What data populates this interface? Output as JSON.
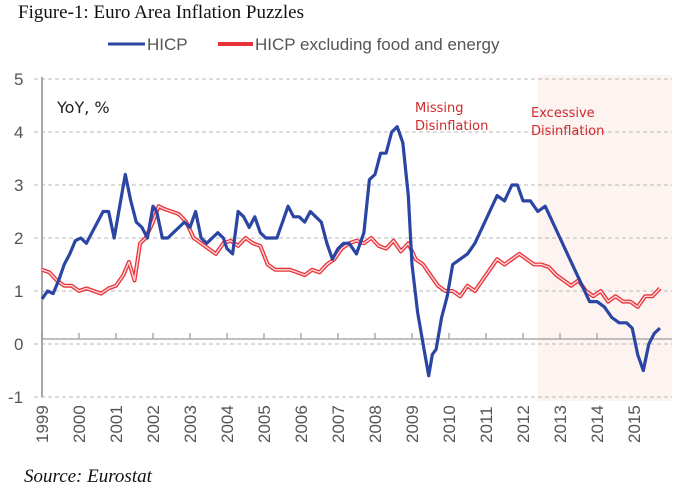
{
  "figure": {
    "title": "Figure-1: Euro Area Inflation Puzzles",
    "source": "Source: Eurostat"
  },
  "chart_data": {
    "type": "line",
    "title": "Figure-1: Euro Area Inflation Puzzles",
    "xlabel": "",
    "ylabel": "YoY, %",
    "unit_label": "YoY, %",
    "xlim": [
      1999,
      2016
    ],
    "ylim": [
      -1,
      5
    ],
    "x_ticks": [
      1999,
      2000,
      2001,
      2002,
      2003,
      2004,
      2005,
      2006,
      2007,
      2008,
      2009,
      2010,
      2011,
      2012,
      2013,
      2014,
      2015
    ],
    "y_ticks": [
      -1,
      0,
      1,
      2,
      3,
      4,
      5
    ],
    "grid": "horizontal-dashed",
    "legend_position": "top-center",
    "legend": [
      "HICP",
      "HICP excluding food and energy"
    ],
    "shaded_region": {
      "from": 2012.4,
      "to": 2015.9,
      "color": "#fdf3f1"
    },
    "annotations": [
      {
        "text": "Missing",
        "x": 2009.0,
        "y": 4.5
      },
      {
        "text": "Disinflation",
        "x": 2009.0,
        "y": 4.1
      },
      {
        "text": "Excessive",
        "x": 2012.4,
        "y": 4.4
      },
      {
        "text": "Disinflation",
        "x": 2012.4,
        "y": 4.05
      }
    ],
    "series": [
      {
        "name": "HICP",
        "color": "#2a45a3",
        "x": [
          1999.0,
          1999.15,
          1999.3,
          1999.45,
          1999.6,
          1999.75,
          1999.9,
          2000.05,
          2000.2,
          2000.35,
          2000.5,
          2000.65,
          2000.8,
          2000.95,
          2001.1,
          2001.25,
          2001.4,
          2001.55,
          2001.7,
          2001.85,
          2002.0,
          2002.1,
          2002.25,
          2002.4,
          2002.55,
          2002.7,
          2002.85,
          2003.0,
          2003.15,
          2003.3,
          2003.45,
          2003.6,
          2003.75,
          2003.9,
          2004.0,
          2004.15,
          2004.3,
          2004.45,
          2004.6,
          2004.75,
          2004.9,
          2005.05,
          2005.2,
          2005.35,
          2005.5,
          2005.65,
          2005.8,
          2005.95,
          2006.1,
          2006.25,
          2006.4,
          2006.55,
          2006.7,
          2006.85,
          2007.0,
          2007.15,
          2007.3,
          2007.5,
          2007.7,
          2007.85,
          2008.0,
          2008.15,
          2008.3,
          2008.45,
          2008.6,
          2008.75,
          2008.9,
          2009.0,
          2009.15,
          2009.3,
          2009.45,
          2009.55,
          2009.65,
          2009.8,
          2009.95,
          2010.1,
          2010.3,
          2010.5,
          2010.7,
          2010.9,
          2011.1,
          2011.3,
          2011.5,
          2011.7,
          2011.85,
          2012.0,
          2012.2,
          2012.4,
          2012.6,
          2012.8,
          2013.0,
          2013.2,
          2013.4,
          2013.6,
          2013.8,
          2014.0,
          2014.2,
          2014.4,
          2014.6,
          2014.8,
          2014.95,
          2015.1,
          2015.25,
          2015.4,
          2015.55,
          2015.7
        ],
        "values": [
          0.85,
          1.0,
          0.95,
          1.2,
          1.5,
          1.7,
          1.95,
          2.0,
          1.9,
          2.1,
          2.3,
          2.5,
          2.5,
          2.0,
          2.6,
          3.2,
          2.7,
          2.3,
          2.2,
          2.0,
          2.6,
          2.5,
          2.0,
          2.0,
          2.1,
          2.2,
          2.3,
          2.2,
          2.5,
          2.0,
          1.9,
          2.0,
          2.1,
          2.0,
          1.8,
          1.7,
          2.5,
          2.4,
          2.2,
          2.4,
          2.1,
          2.0,
          2.0,
          2.0,
          2.3,
          2.6,
          2.4,
          2.4,
          2.3,
          2.5,
          2.4,
          2.3,
          1.9,
          1.6,
          1.8,
          1.9,
          1.9,
          1.7,
          2.1,
          3.1,
          3.2,
          3.6,
          3.6,
          4.0,
          4.1,
          3.8,
          2.8,
          1.5,
          0.6,
          0.0,
          -0.6,
          -0.2,
          -0.1,
          0.5,
          0.9,
          1.5,
          1.6,
          1.7,
          1.9,
          2.2,
          2.5,
          2.8,
          2.7,
          3.0,
          3.0,
          2.7,
          2.7,
          2.5,
          2.6,
          2.3,
          2.0,
          1.7,
          1.4,
          1.1,
          0.8,
          0.8,
          0.7,
          0.5,
          0.4,
          0.4,
          0.3,
          -0.2,
          -0.5,
          0.0,
          0.2,
          0.3
        ]
      },
      {
        "name": "HICP excluding food and energy",
        "color": "#e8323a",
        "x": [
          1999.0,
          1999.2,
          1999.4,
          1999.6,
          1999.8,
          2000.0,
          2000.2,
          2000.4,
          2000.6,
          2000.8,
          2001.0,
          2001.2,
          2001.35,
          2001.5,
          2001.65,
          2001.8,
          2002.0,
          2002.15,
          2002.3,
          2002.5,
          2002.7,
          2002.9,
          2003.1,
          2003.3,
          2003.5,
          2003.7,
          2003.9,
          2004.1,
          2004.3,
          2004.5,
          2004.7,
          2004.9,
          2005.1,
          2005.3,
          2005.5,
          2005.7,
          2005.9,
          2006.1,
          2006.3,
          2006.5,
          2006.7,
          2006.9,
          2007.1,
          2007.3,
          2007.5,
          2007.7,
          2007.9,
          2008.1,
          2008.3,
          2008.5,
          2008.7,
          2008.9,
          2009.1,
          2009.3,
          2009.5,
          2009.7,
          2009.9,
          2010.1,
          2010.3,
          2010.5,
          2010.7,
          2010.9,
          2011.1,
          2011.3,
          2011.5,
          2011.7,
          2011.9,
          2012.1,
          2012.3,
          2012.5,
          2012.7,
          2012.9,
          2013.1,
          2013.3,
          2013.5,
          2013.7,
          2013.9,
          2014.1,
          2014.3,
          2014.5,
          2014.7,
          2014.9,
          2015.1,
          2015.3,
          2015.5,
          2015.7
        ],
        "values": [
          1.4,
          1.35,
          1.2,
          1.1,
          1.1,
          1.0,
          1.05,
          1.0,
          0.95,
          1.05,
          1.1,
          1.3,
          1.55,
          1.2,
          1.9,
          2.0,
          2.3,
          2.6,
          2.55,
          2.5,
          2.45,
          2.3,
          2.0,
          1.9,
          1.8,
          1.7,
          1.9,
          1.95,
          1.85,
          2.0,
          1.9,
          1.85,
          1.5,
          1.4,
          1.4,
          1.4,
          1.35,
          1.3,
          1.4,
          1.35,
          1.5,
          1.6,
          1.8,
          1.9,
          1.95,
          1.9,
          2.0,
          1.85,
          1.8,
          1.95,
          1.75,
          1.9,
          1.6,
          1.5,
          1.3,
          1.1,
          1.0,
          1.0,
          0.9,
          1.1,
          1.0,
          1.2,
          1.4,
          1.6,
          1.5,
          1.6,
          1.7,
          1.6,
          1.5,
          1.5,
          1.45,
          1.3,
          1.2,
          1.1,
          1.2,
          1.0,
          0.9,
          1.0,
          0.8,
          0.9,
          0.8,
          0.8,
          0.7,
          0.9,
          0.9,
          1.05
        ]
      }
    ]
  }
}
